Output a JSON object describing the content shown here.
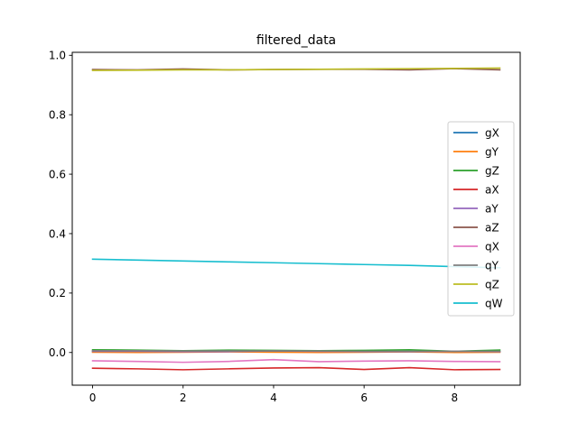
{
  "chart_data": {
    "type": "line",
    "title": "filtered_data",
    "xlabel": "",
    "ylabel": "",
    "xlim": [
      -0.45,
      9.45
    ],
    "ylim": [
      -0.11,
      1.01
    ],
    "xticks": [
      0,
      2,
      4,
      6,
      8
    ],
    "yticks": [
      0.0,
      0.2,
      0.4,
      0.6,
      0.8,
      1.0
    ],
    "xtick_labels": [
      "0",
      "2",
      "4",
      "6",
      "8"
    ],
    "ytick_labels": [
      "0.0",
      "0.2",
      "0.4",
      "0.6",
      "0.8",
      "1.0"
    ],
    "grid": false,
    "legend_position": "center-right",
    "x": [
      0,
      1,
      2,
      3,
      4,
      5,
      6,
      7,
      8,
      9
    ],
    "series": [
      {
        "name": "gX",
        "color": "#1f77b4",
        "values": [
          0.003,
          0.003,
          0.002,
          0.004,
          0.003,
          0.003,
          0.002,
          0.003,
          0.002,
          0.003
        ]
      },
      {
        "name": "gY",
        "color": "#ff7f0e",
        "values": [
          0.001,
          0.0,
          0.001,
          0.002,
          0.001,
          0.0,
          0.001,
          0.002,
          0.0,
          0.001
        ]
      },
      {
        "name": "gZ",
        "color": "#2ca02c",
        "values": [
          0.009,
          0.008,
          0.006,
          0.008,
          0.007,
          0.006,
          0.007,
          0.009,
          0.004,
          0.008
        ]
      },
      {
        "name": "aX",
        "color": "#d62728",
        "values": [
          -0.053,
          -0.055,
          -0.058,
          -0.055,
          -0.052,
          -0.051,
          -0.057,
          -0.051,
          -0.058,
          -0.057
        ]
      },
      {
        "name": "aY",
        "color": "#9467bd",
        "values": [
          0.004,
          0.004,
          0.003,
          0.003,
          0.005,
          0.004,
          0.003,
          0.003,
          0.004,
          0.003
        ]
      },
      {
        "name": "aZ",
        "color": "#8c564b",
        "values": [
          0.952,
          0.951,
          0.954,
          0.951,
          0.952,
          0.953,
          0.953,
          0.951,
          0.955,
          0.951
        ]
      },
      {
        "name": "qX",
        "color": "#e377c2",
        "values": [
          -0.028,
          -0.03,
          -0.033,
          -0.03,
          -0.024,
          -0.031,
          -0.029,
          -0.028,
          -0.03,
          -0.031
        ]
      },
      {
        "name": "qY",
        "color": "#7f7f7f",
        "values": [
          0.006,
          0.006,
          0.005,
          0.005,
          0.005,
          0.005,
          0.004,
          0.004,
          0.004,
          0.004
        ]
      },
      {
        "name": "qZ",
        "color": "#bcbd22",
        "values": [
          0.949,
          0.95,
          0.951,
          0.951,
          0.952,
          0.953,
          0.954,
          0.955,
          0.956,
          0.957
        ]
      },
      {
        "name": "qW",
        "color": "#17becf",
        "values": [
          0.314,
          0.311,
          0.308,
          0.305,
          0.302,
          0.299,
          0.296,
          0.293,
          0.289,
          0.285
        ]
      }
    ]
  }
}
